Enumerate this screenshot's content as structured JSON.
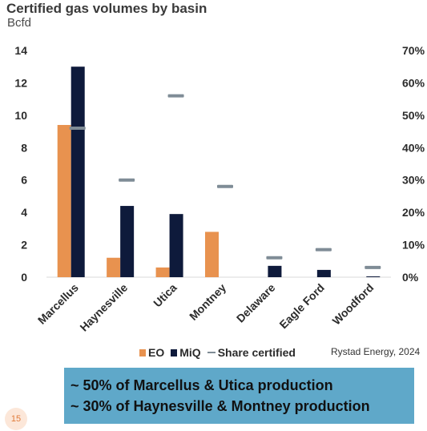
{
  "header": {
    "title": "Certified gas volumes by basin",
    "subtitle": "Bcfd"
  },
  "chart_data": {
    "type": "bar",
    "title": "Certified gas volumes by basin",
    "ylabel": "Bcfd",
    "categories": [
      "Marcellus",
      "Haynesville",
      "Utica",
      "Montney",
      "Delaware",
      "Eagle Ford",
      "Woodford"
    ],
    "series": [
      {
        "name": "EO",
        "type": "bar",
        "axis": "left",
        "color": "#e8924f",
        "values": [
          9.4,
          1.2,
          0.6,
          2.8,
          0,
          0,
          0
        ]
      },
      {
        "name": "MiQ",
        "type": "bar",
        "axis": "left",
        "color": "#0e1a3b",
        "values": [
          13.0,
          4.4,
          3.9,
          0,
          0.7,
          0.45,
          0.05
        ]
      },
      {
        "name": "Share certified",
        "type": "marker",
        "axis": "right",
        "unit": "%",
        "color": "#7f8c96",
        "values": [
          46,
          30,
          56,
          28,
          6,
          8.5,
          3
        ]
      }
    ],
    "ylim": [
      0,
      14
    ],
    "yticks": [
      "0",
      "2",
      "4",
      "6",
      "8",
      "10",
      "12",
      "14"
    ],
    "y2lim": [
      0,
      70
    ],
    "y2ticks": [
      "0%",
      "10%",
      "20%",
      "30%",
      "40%",
      "50%",
      "60%",
      "70%"
    ],
    "grid": false,
    "legend_position": "bottom"
  },
  "legend": {
    "eo": "EO",
    "miq": "MiQ",
    "share": "Share certified"
  },
  "source": "Rystad Energy, 2024",
  "callout": {
    "line1": "~ 50% of Marcellus & Utica production",
    "line2": "~ 30% of Haynesville & Montney production"
  },
  "page_number": "15"
}
